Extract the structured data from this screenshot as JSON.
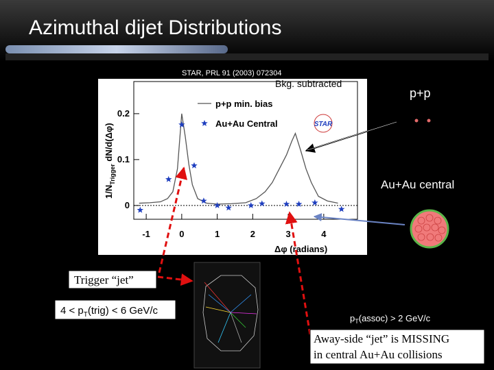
{
  "slide": {
    "title": "Azimuthal dijet Distributions",
    "reference": "STAR, PRL 91 (2003) 072304",
    "bkg_note": "Bkg. subtracted",
    "pp_label": "p+p",
    "auau_label": "Au+Au central",
    "trigger_label": "Trigger “jet”",
    "trigger_cut": {
      "before": "4 < p",
      "sub": "T",
      "after": "(trig) < 6 GeV/c"
    },
    "assoc_cut": {
      "before": "p",
      "sub": "T",
      "after": "(assoc) > 2 GeV/c"
    },
    "conclusion": [
      "Away-side “jet” is  MISSING",
      "in central Au+Au collisions"
    ],
    "logo": "STAR"
  },
  "chart_data": {
    "type": "line",
    "xlabel": {
      "symbol": "Δφ",
      "unit": " (radians)"
    },
    "ylabel": {
      "before": "1/N",
      "sub": "Trigger",
      "after": " dN/d(Δφ)"
    },
    "xlim": [
      -1.35,
      4.95
    ],
    "ylim": [
      -0.03,
      0.27
    ],
    "xticks": [
      -1,
      0,
      1,
      2,
      3,
      4
    ],
    "yticks": [
      0,
      0.1,
      0.2
    ],
    "series": [
      {
        "name": "p+p min. bias",
        "color": "#555555",
        "kind": "line",
        "x": [
          -1.2,
          -0.9,
          -0.6,
          -0.4,
          -0.25,
          -0.12,
          0,
          0.1,
          0.2,
          0.3,
          0.45,
          0.7,
          1.0,
          1.4,
          1.8,
          2.1,
          2.35,
          2.55,
          2.75,
          2.95,
          3.1,
          3.2,
          3.35,
          3.5,
          3.65,
          3.85,
          4.1,
          4.4
        ],
        "values": [
          0.005,
          0.006,
          0.008,
          0.015,
          0.03,
          0.08,
          0.2,
          0.15,
          0.09,
          0.045,
          0.015,
          0.005,
          0.003,
          0.004,
          0.006,
          0.015,
          0.03,
          0.05,
          0.08,
          0.11,
          0.14,
          0.157,
          0.12,
          0.08,
          0.05,
          0.02,
          0.01,
          0.005
        ]
      },
      {
        "name": "Au+Au Central",
        "color": "#1f3fbf",
        "kind": "star",
        "x": [
          -1.17,
          -0.37,
          0,
          0.35,
          0.62,
          1.0,
          1.32,
          1.95,
          2.26,
          2.95,
          3.3,
          3.75,
          4.5
        ],
        "values": [
          -0.01,
          0.057,
          0.176,
          0.087,
          0.01,
          0,
          -0.005,
          0,
          0.004,
          0.003,
          0.003,
          0.006,
          -0.008
        ]
      }
    ]
  }
}
